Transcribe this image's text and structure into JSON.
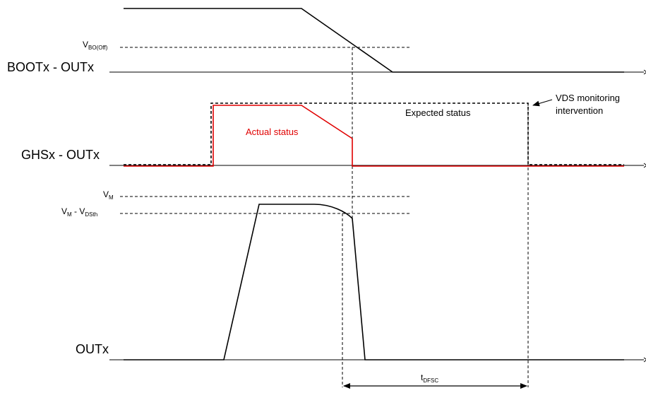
{
  "signals": {
    "boot": "BOOTx - OUTx",
    "ghs": "GHSx - OUTx",
    "out": "OUTx"
  },
  "levels": {
    "vbo_main": "V",
    "vbo_sub": "BO(Off)",
    "vm_main": "V",
    "vm_sub": "M",
    "vmd_main1": "V",
    "vmd_sub1": "M",
    "vmd_mid": " - V",
    "vmd_sub2": "DSth"
  },
  "annotations": {
    "expected": "Expected status",
    "actual": "Actual status",
    "vds_line1": "VDS monitoring",
    "vds_line2": "intervention",
    "tdfsc_main": "t",
    "tdfsc_sub": "DFSC"
  },
  "colors": {
    "signal": "#000000",
    "actual": "#e00000",
    "guide": "#000000"
  }
}
